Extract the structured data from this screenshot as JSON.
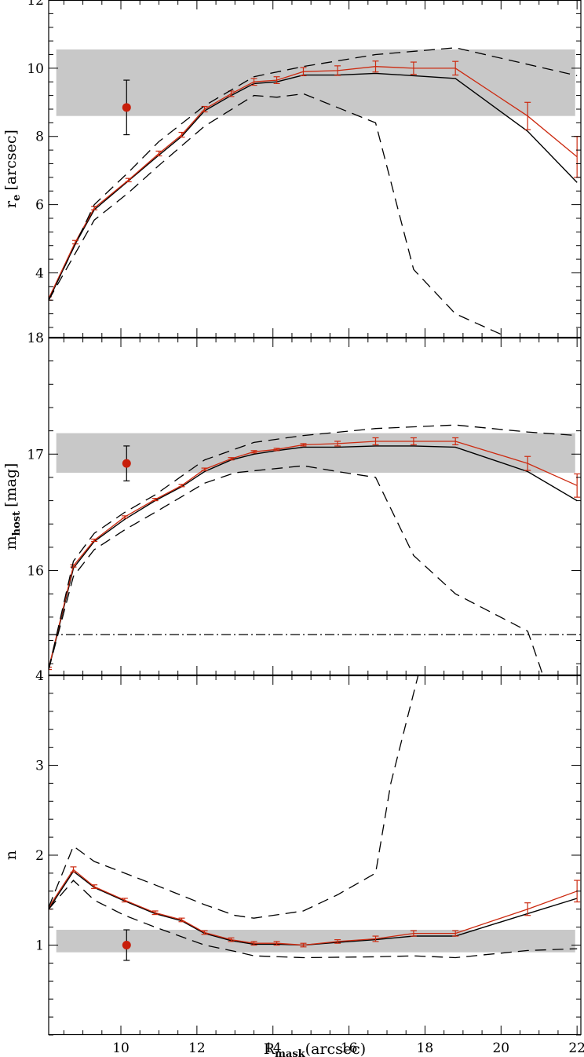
{
  "chart_data": [
    {
      "type": "line",
      "panel": "top",
      "ylabel": "r",
      "ylabel_sub": "e",
      "ylabel_unit": "[arcsec]",
      "xlim": [
        8.1,
        22.1
      ],
      "ylim": [
        2.1,
        12
      ],
      "y_ticks": [
        4,
        6,
        8,
        10,
        12
      ],
      "band": [
        8.6,
        10.55
      ],
      "point": {
        "x": 10.15,
        "y": 8.85,
        "err": 0.8
      },
      "series": [
        {
          "role": "black",
          "x": [
            8.1,
            8.8,
            9.3,
            10.2,
            11.0,
            11.6,
            12.2,
            12.9,
            13.5,
            14.1,
            14.8,
            15.7,
            16.7,
            17.7,
            18.8,
            20.7,
            22.0
          ],
          "y": [
            3.2,
            4.85,
            5.85,
            6.7,
            7.45,
            8.0,
            8.75,
            9.2,
            9.55,
            9.6,
            9.8,
            9.8,
            9.85,
            9.78,
            9.7,
            8.15,
            6.65
          ]
        },
        {
          "role": "red",
          "x": [
            8.1,
            8.8,
            9.3,
            10.2,
            11.0,
            11.6,
            12.2,
            12.9,
            13.5,
            14.1,
            14.8,
            15.7,
            16.7,
            17.7,
            18.8,
            20.7,
            22.0
          ],
          "y": [
            3.25,
            4.9,
            5.9,
            6.72,
            7.5,
            8.05,
            8.8,
            9.25,
            9.6,
            9.65,
            9.9,
            9.93,
            10.05,
            10.0,
            10.0,
            8.6,
            7.4
          ],
          "err": [
            0.05,
            0.05,
            0.05,
            0.05,
            0.07,
            0.07,
            0.08,
            0.08,
            0.1,
            0.1,
            0.12,
            0.14,
            0.16,
            0.18,
            0.2,
            0.4,
            0.6
          ]
        },
        {
          "role": "dashed-upper",
          "x": [
            8.1,
            9.3,
            10.2,
            11.0,
            12.2,
            13.5,
            14.8,
            16.7,
            18.8,
            22.0
          ],
          "y": [
            3.2,
            6.0,
            6.95,
            7.85,
            8.9,
            9.75,
            10.05,
            10.4,
            10.6,
            9.78
          ]
        },
        {
          "role": "dashed-lower",
          "x": [
            8.1,
            9.3,
            10.2,
            11.0,
            12.2,
            13.5,
            14.1,
            14.8,
            16.7,
            17.7,
            18.8,
            20.0
          ],
          "y": [
            3.2,
            5.55,
            6.35,
            7.15,
            8.3,
            9.2,
            9.15,
            9.25,
            8.4,
            4.1,
            2.8,
            2.2
          ]
        }
      ]
    },
    {
      "type": "line",
      "panel": "middle",
      "ylabel": "m",
      "ylabel_sub": "host",
      "ylabel_unit": "[mag]",
      "xlim": [
        8.1,
        22.1
      ],
      "ylim": [
        15.1,
        18
      ],
      "y_ticks": [
        16,
        17,
        18
      ],
      "band": [
        16.84,
        17.18
      ],
      "hline": 15.45,
      "point": {
        "x": 10.15,
        "y": 16.92,
        "err": 0.15
      },
      "series": [
        {
          "role": "black",
          "x": [
            8.1,
            8.75,
            9.3,
            10.1,
            10.9,
            11.6,
            12.2,
            12.9,
            13.5,
            14.1,
            14.8,
            15.7,
            16.7,
            17.7,
            18.8,
            20.7,
            22.0
          ],
          "y": [
            15.15,
            16.02,
            16.25,
            16.44,
            16.6,
            16.72,
            16.85,
            16.95,
            17.0,
            17.03,
            17.06,
            17.06,
            17.07,
            17.07,
            17.06,
            16.85,
            16.6
          ]
        },
        {
          "role": "red",
          "x": [
            8.1,
            8.75,
            9.3,
            10.1,
            10.9,
            11.6,
            12.2,
            12.9,
            13.5,
            14.1,
            14.8,
            15.7,
            16.7,
            17.7,
            18.8,
            20.7,
            22.0
          ],
          "y": [
            15.16,
            16.04,
            16.26,
            16.46,
            16.61,
            16.73,
            16.87,
            16.96,
            17.02,
            17.04,
            17.08,
            17.09,
            17.11,
            17.11,
            17.11,
            16.92,
            16.73
          ],
          "err": [
            0.01,
            0.01,
            0.01,
            0.01,
            0.01,
            0.01,
            0.01,
            0.01,
            0.01,
            0.01,
            0.01,
            0.02,
            0.03,
            0.03,
            0.03,
            0.06,
            0.1
          ]
        },
        {
          "role": "dashed-upper",
          "x": [
            8.1,
            8.75,
            9.3,
            10.1,
            10.9,
            12.2,
            13.5,
            14.8,
            16.7,
            18.8,
            20.7,
            22.0
          ],
          "y": [
            15.15,
            16.08,
            16.32,
            16.5,
            16.65,
            16.95,
            17.1,
            17.16,
            17.22,
            17.25,
            17.19,
            17.16
          ]
        },
        {
          "role": "dashed-lower",
          "x": [
            8.1,
            8.75,
            9.3,
            10.1,
            10.9,
            12.2,
            13.0,
            14.8,
            15.7,
            16.7,
            17.7,
            18.8,
            20.7,
            21.0,
            21.1
          ],
          "y": [
            15.15,
            15.95,
            16.18,
            16.35,
            16.5,
            16.75,
            16.84,
            16.9,
            16.85,
            16.8,
            16.13,
            15.8,
            15.48,
            15.2,
            15.1
          ]
        }
      ]
    },
    {
      "type": "line",
      "panel": "bottom",
      "ylabel": "n",
      "xlabel": "R",
      "xlabel_sub": "mask",
      "xlabel_unit": "(arcsec)",
      "xlim": [
        8.1,
        22.1
      ],
      "ylim": [
        0,
        4
      ],
      "y_ticks": [
        1,
        2,
        3,
        4
      ],
      "x_ticks": [
        10,
        12,
        14,
        16,
        18,
        20,
        22
      ],
      "band": [
        0.92,
        1.17
      ],
      "point": {
        "x": 10.15,
        "y": 1.0,
        "err": 0.17
      },
      "series": [
        {
          "role": "black",
          "x": [
            8.1,
            8.75,
            9.3,
            10.1,
            10.9,
            11.6,
            12.2,
            12.9,
            13.5,
            14.1,
            14.8,
            15.7,
            16.7,
            17.7,
            18.8,
            20.7,
            22.0
          ],
          "y": [
            1.4,
            1.82,
            1.64,
            1.49,
            1.35,
            1.27,
            1.13,
            1.05,
            1.01,
            1.01,
            1.0,
            1.03,
            1.06,
            1.1,
            1.1,
            1.35,
            1.52
          ]
        },
        {
          "role": "red",
          "x": [
            8.1,
            8.75,
            9.3,
            10.1,
            10.9,
            11.6,
            12.2,
            12.9,
            13.5,
            14.1,
            14.8,
            15.7,
            16.7,
            17.7,
            18.8,
            20.7,
            22.0
          ],
          "y": [
            1.42,
            1.84,
            1.65,
            1.5,
            1.36,
            1.28,
            1.14,
            1.06,
            1.02,
            1.02,
            1.0,
            1.04,
            1.07,
            1.13,
            1.13,
            1.4,
            1.6
          ],
          "err": [
            0.02,
            0.03,
            0.02,
            0.02,
            0.02,
            0.02,
            0.02,
            0.02,
            0.02,
            0.02,
            0.02,
            0.02,
            0.03,
            0.03,
            0.03,
            0.07,
            0.12
          ]
        },
        {
          "role": "dashed-upper",
          "x": [
            8.1,
            8.75,
            9.3,
            10.1,
            10.9,
            12.2,
            13.0,
            13.5,
            14.8,
            15.7,
            16.7,
            17.1,
            17.7,
            17.85
          ],
          "y": [
            1.42,
            2.1,
            1.93,
            1.8,
            1.67,
            1.45,
            1.33,
            1.3,
            1.38,
            1.56,
            1.8,
            2.8,
            3.8,
            4.05
          ]
        },
        {
          "role": "dashed-lower",
          "x": [
            8.1,
            8.75,
            9.3,
            10.1,
            10.9,
            12.2,
            13.0,
            13.5,
            14.8,
            16.7,
            17.7,
            18.8,
            20.7,
            22.0
          ],
          "y": [
            1.4,
            1.72,
            1.5,
            1.33,
            1.2,
            1.0,
            0.93,
            0.88,
            0.86,
            0.87,
            0.88,
            0.86,
            0.94,
            0.96
          ]
        }
      ]
    }
  ],
  "colors": {
    "band": "#c8c8c8",
    "red": "#cc2a10",
    "black": "#000000",
    "point": "#c81e0a"
  }
}
